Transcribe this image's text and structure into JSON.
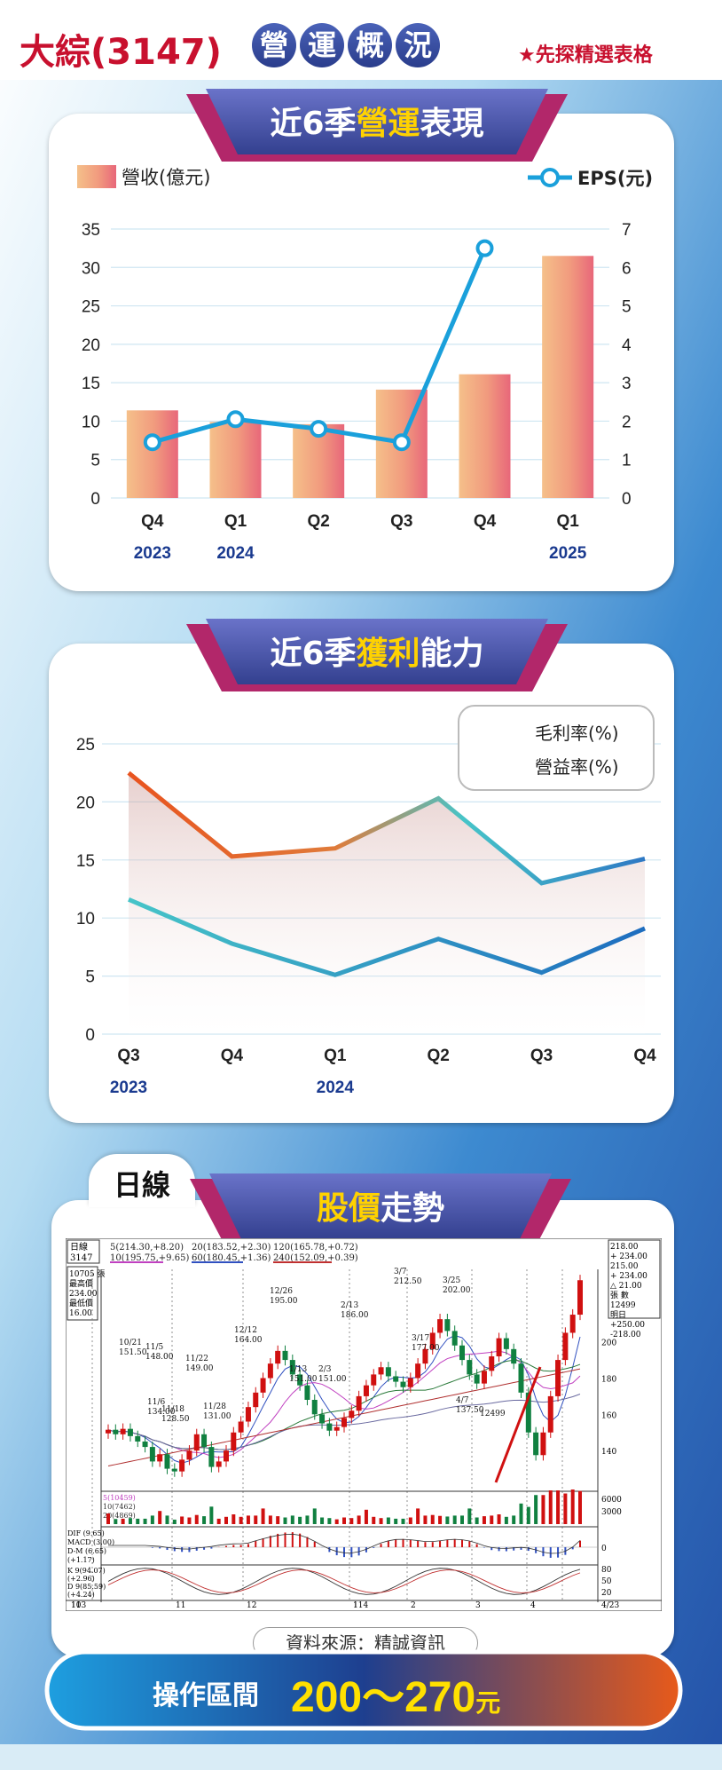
{
  "header": {
    "title": "大綜(3147)",
    "title_circles": [
      "營",
      "運",
      "概",
      "況"
    ],
    "note": "★先探精選表格"
  },
  "section1": {
    "title_pre": "近6季",
    "title_hl": "營運",
    "title_post": "表現"
  },
  "section2": {
    "title_pre": "近6季",
    "title_hl": "獲利",
    "title_post": "能力"
  },
  "section3": {
    "tag": "日線",
    "title_hl": "股價",
    "title_post": "走勢"
  },
  "source": "資料來源：精誠資訊",
  "operation": {
    "label": "操作區間",
    "value": "200～270",
    "unit": "元"
  },
  "chart_data": [
    {
      "type": "bar",
      "categories": [
        "Q4",
        "Q1",
        "Q2",
        "Q3",
        "Q4",
        "Q1"
      ],
      "year_labels": [
        "2023",
        "2024",
        "",
        "",
        "",
        "2025"
      ],
      "series": [
        {
          "name": "營收(億元)",
          "type": "bar",
          "axis": "left",
          "values": [
            11.4,
            9.9,
            9.6,
            14.1,
            16.1,
            31.5
          ]
        },
        {
          "name": "EPS(元)",
          "type": "line",
          "axis": "right",
          "values": [
            1.45,
            2.05,
            1.8,
            1.45,
            6.5,
            null
          ]
        }
      ],
      "ylim_left": [
        0,
        35
      ],
      "yticks_left": [
        0,
        5,
        10,
        15,
        20,
        25,
        30,
        35
      ],
      "ylim_right": [
        0,
        7
      ],
      "yticks_right": [
        0,
        1,
        2,
        3,
        4,
        5,
        6,
        7
      ],
      "grid": true,
      "legend": "top",
      "colors": {
        "bar_light": "#f5c08a",
        "bar_dark": "#e8677a",
        "line": "#1aa0db"
      }
    },
    {
      "type": "area",
      "categories": [
        "Q3",
        "Q4",
        "Q1",
        "Q2",
        "Q3",
        "Q4"
      ],
      "year_labels": [
        "2023",
        "",
        "2024",
        "",
        "",
        ""
      ],
      "series": [
        {
          "name": "毛利率(%)",
          "values": [
            22.5,
            15.3,
            16.0,
            20.3,
            13.0,
            15.1
          ]
        },
        {
          "name": "營益率(%)",
          "values": [
            11.6,
            7.8,
            5.1,
            8.2,
            5.3,
            9.1
          ]
        }
      ],
      "ylim": [
        0,
        25
      ],
      "yticks": [
        0,
        5,
        10,
        15,
        20,
        25
      ],
      "grid": true,
      "legend": "top-right",
      "colors": {
        "gross_start": "#e8531f",
        "gross_end": "#46c4c8",
        "op_start": "#46c4c8",
        "op_end": "#1e6dbf"
      }
    },
    {
      "type": "line",
      "title": "日線",
      "header_labels": {
        "name": "日線",
        "code": "3147",
        "ma_row1": [
          "5(214.30,+8.20)",
          "20(183.52,+2.30)",
          "120(165.78,+0.72)"
        ],
        "ma_row2": [
          "10(195.75,+9.65)",
          "60(180.45,+1.36)",
          "240(152.09,+0.39)"
        ],
        "left_box": [
          "10705 張",
          "最高價",
          "234.00",
          "最低價",
          "16.00"
        ],
        "right_box": [
          "218.00",
          "+ 234.00",
          "215.00",
          "+ 234.00",
          "△ 21.00",
          "張 數",
          "12499",
          "明日",
          "+250.00",
          "-218.00"
        ]
      },
      "annotations": [
        "10/21\n151.50",
        "11/5\n148.00",
        "11/6\n134.00",
        "11/18\n128.50",
        "11/22\n149.00",
        "11/28\n131.00",
        "12/12\n164.00",
        "12/26\n195.00",
        "1/13\n151.00",
        "2/3\n151.00",
        "2/13\n186.00",
        "3/7\n212.50",
        "3/17\n177.00",
        "3/25\n202.00",
        "4/7\n137.50",
        "12499"
      ],
      "price_ticks": [
        "200",
        "180",
        "160",
        "140"
      ],
      "volume_ticks": [
        "6000",
        "3000"
      ],
      "volume_label": [
        "5(10459)",
        "10(7462)",
        "20(4869)"
      ],
      "macd_label": [
        "DIF (9.65)",
        "MACD (3.00)",
        "D-M (6.65)",
        "(+1.17)"
      ],
      "macd_ticks": [
        "0"
      ],
      "kd_label": [
        "K 9(94.07)",
        "(+2.96)",
        "D 9(85.59)",
        "(+4.24)"
      ],
      "kd_ticks": [
        "80",
        "50",
        "20"
      ],
      "x_labels": [
        "10\n113",
        "11",
        "12",
        "1\n114",
        "2",
        "3",
        "4",
        "4/23"
      ],
      "series_close": [
        151.5,
        149,
        152,
        148,
        145,
        142,
        134,
        138,
        130,
        128.5,
        135,
        140,
        149,
        142,
        131,
        134,
        140,
        150,
        156,
        164,
        172,
        180,
        188,
        195,
        190,
        182,
        176,
        168,
        160,
        155,
        151,
        153,
        158,
        162,
        170,
        176,
        182,
        186,
        181,
        178,
        175,
        180,
        188,
        196,
        205,
        212.5,
        206,
        198,
        190,
        182,
        177,
        184,
        192,
        202,
        196,
        188,
        172,
        150,
        137.5,
        150,
        170,
        190,
        205,
        215,
        234
      ]
    }
  ]
}
